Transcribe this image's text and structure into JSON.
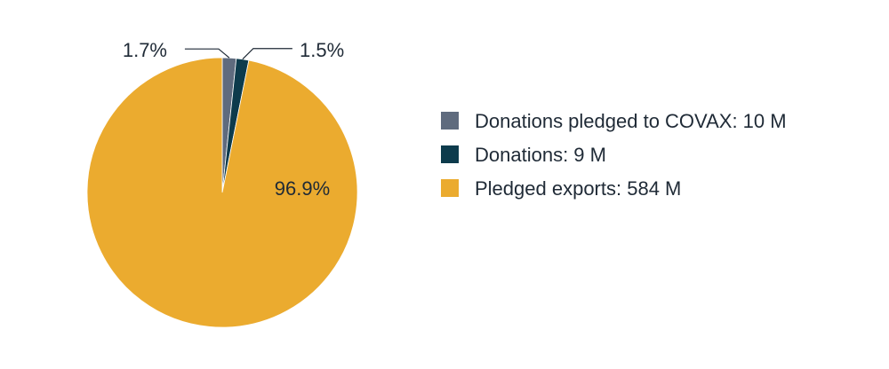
{
  "chart_data": {
    "type": "pie",
    "title": "",
    "slices": [
      {
        "name": "Donations pledged to COVAX",
        "value": 10,
        "percent_label": "1.7%",
        "color": "#5f6b7e",
        "legend_label": "Donations pledged to COVAX: 10 M"
      },
      {
        "name": "Donations",
        "value": 9,
        "percent_label": "1.5%",
        "color": "#0d3b4c",
        "legend_label": "Donations: 9 M"
      },
      {
        "name": "Pledged exports",
        "value": 584,
        "percent_label": "96.9%",
        "color": "#ebab2f",
        "legend_label": "Pledged exports: 584 M"
      }
    ],
    "legend_position": "right",
    "start_angle": "12 o'clock",
    "direction": "clockwise"
  }
}
